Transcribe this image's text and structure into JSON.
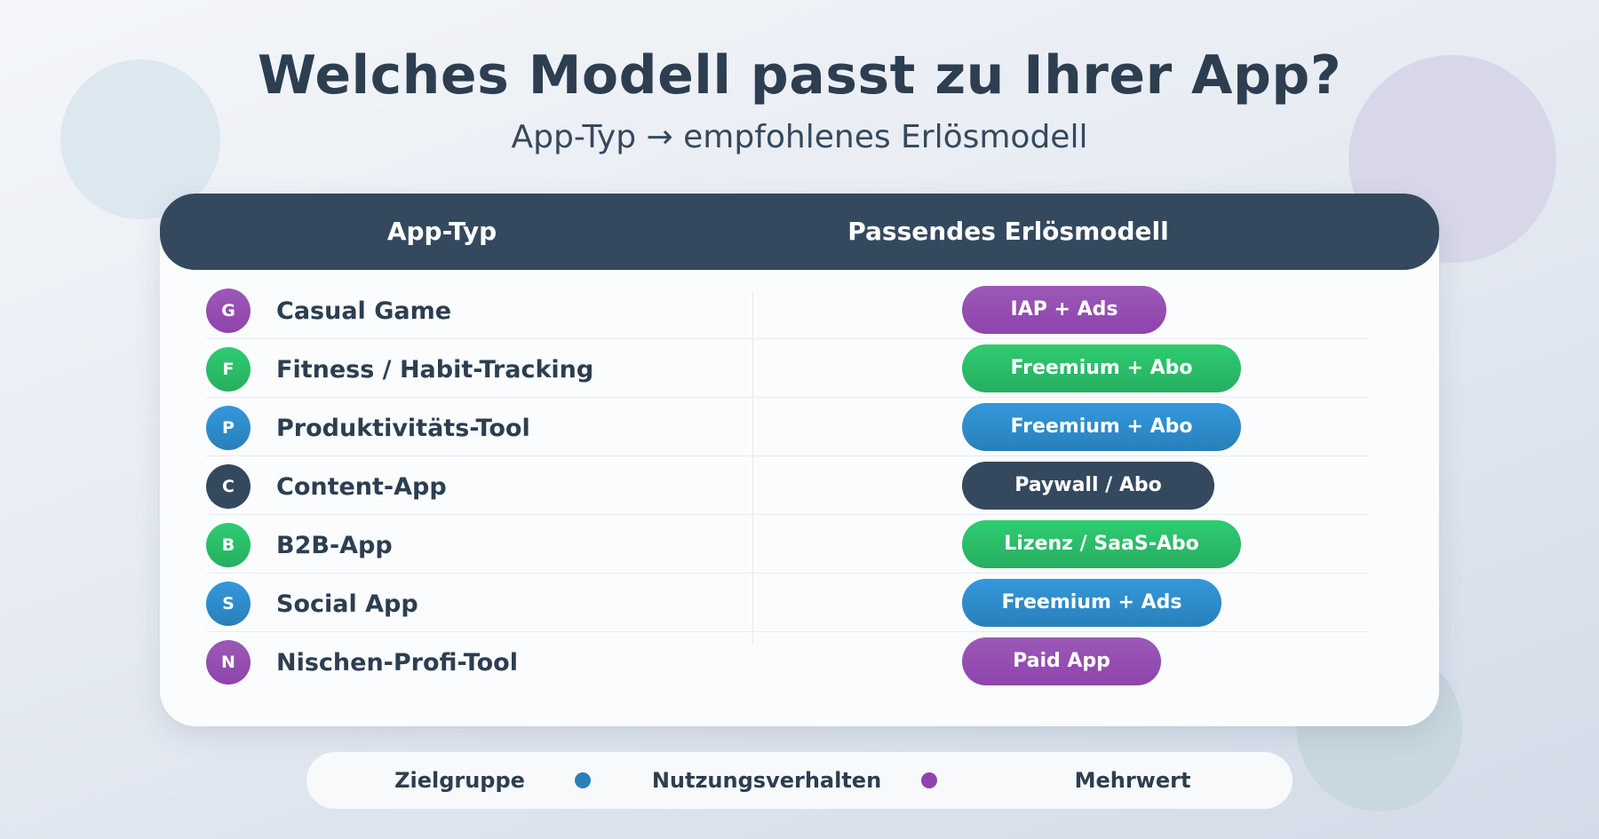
{
  "header": {
    "title": "Welches Modell passt zu Ihrer App?",
    "subtitle": "App-Typ → empfohlenes Erlösmodell"
  },
  "table": {
    "columns": [
      "App-Typ",
      "Passendes Erlösmodell"
    ],
    "rows": [
      {
        "badge": "G",
        "app_type": "Casual Game",
        "model": "IAP + Ads",
        "color": "#9b59b6"
      },
      {
        "badge": "F",
        "app_type": "Fitness / Habit-Tracking",
        "model": "Freemium + Abo",
        "color": "#2ecc71"
      },
      {
        "badge": "P",
        "app_type": "Produktivitäts-Tool",
        "model": "Freemium + Abo",
        "color": "#3498db"
      },
      {
        "badge": "C",
        "app_type": "Content-App",
        "model": "Paywall / Abo",
        "color": "#34495e"
      },
      {
        "badge": "B",
        "app_type": "B2B-App",
        "model": "Lizenz / SaaS-Abo",
        "color": "#2ecc71"
      },
      {
        "badge": "S",
        "app_type": "Social App",
        "model": "Freemium + Ads",
        "color": "#3498db"
      },
      {
        "badge": "N",
        "app_type": "Nischen-Profi-Tool",
        "model": "Paid App",
        "color": "#8e44ad"
      }
    ]
  },
  "legend": {
    "items": [
      "Zielgruppe",
      "Nutzungsverhalten",
      "Mehrwert"
    ],
    "dot_colors": [
      "#2980b9",
      "#8e44ad"
    ]
  }
}
